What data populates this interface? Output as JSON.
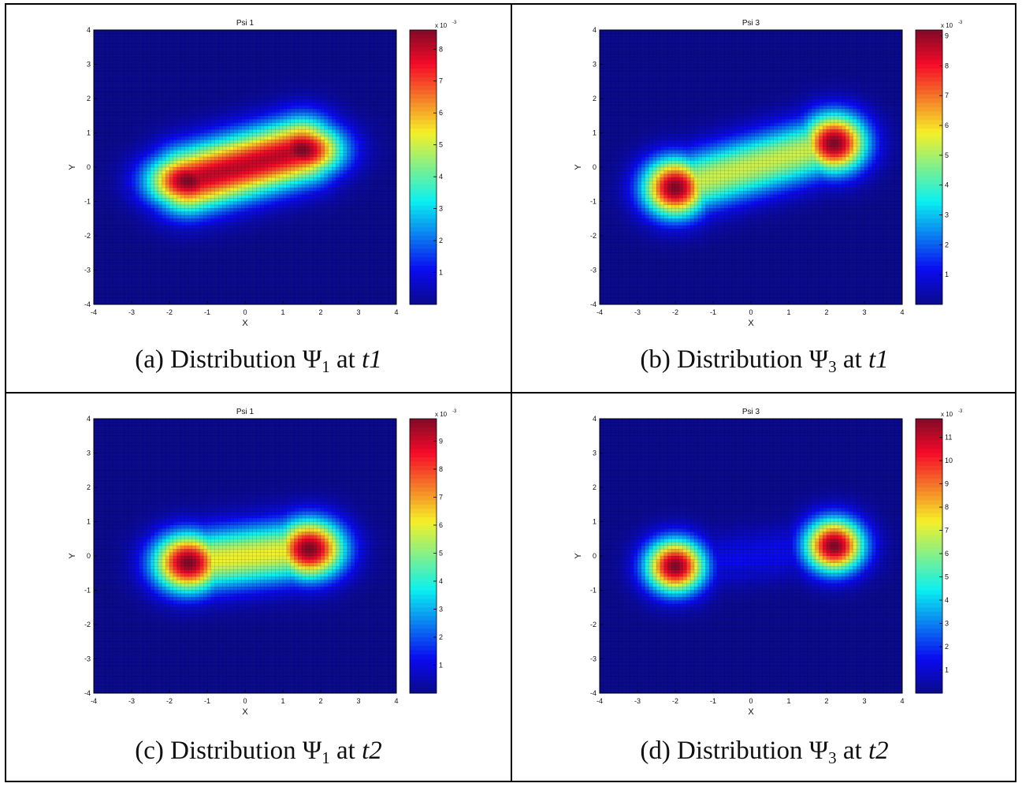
{
  "colormap": "jet",
  "colors": {
    "background_min": "#1f2c8e",
    "grid_line": "#000000",
    "peak": "#800000"
  },
  "chart_data": [
    {
      "type": "heatmap",
      "title": "Psi 1",
      "xlabel": "X",
      "ylabel": "Y",
      "xlim": [
        -4,
        4
      ],
      "ylim": [
        -4,
        4
      ],
      "x_ticks": [
        "-4",
        "-3",
        "-2",
        "-1",
        "0",
        "1",
        "2",
        "3",
        "4"
      ],
      "y_ticks": [
        "4",
        "3",
        "2",
        "1",
        "0",
        "-1",
        "-2",
        "-3",
        "-4"
      ],
      "grid": "on",
      "colorbar": {
        "exponent_label": "x 10",
        "exponent_sup": "-3",
        "ticks": [
          "8",
          "7",
          "6",
          "5",
          "4",
          "3",
          "2",
          "1"
        ],
        "range": [
          0,
          8.6
        ]
      },
      "peaks": [
        {
          "x": -1.5,
          "y": -0.4,
          "value": 8.6,
          "sx": 0.75,
          "sy": 0.55
        },
        {
          "x": 1.5,
          "y": 0.5,
          "value": 8.6,
          "sx": 0.75,
          "sy": 0.55
        }
      ],
      "ridge": 0.93,
      "caption": {
        "prefix": "(a) Distribution ",
        "sym": "Ψ",
        "sub": "1",
        "mid": " at ",
        "time": "t1"
      }
    },
    {
      "type": "heatmap",
      "title": "Psi 3",
      "xlabel": "X",
      "ylabel": "Y",
      "xlim": [
        -4,
        4
      ],
      "ylim": [
        -4,
        4
      ],
      "x_ticks": [
        "-4",
        "-3",
        "-2",
        "-1",
        "0",
        "1",
        "2",
        "3",
        "4"
      ],
      "y_ticks": [
        "4",
        "3",
        "2",
        "1",
        "0",
        "-1",
        "-2",
        "-3",
        "-4"
      ],
      "grid": "on",
      "colorbar": {
        "exponent_label": "x 10",
        "exponent_sup": "-3",
        "ticks": [
          "9",
          "8",
          "7",
          "6",
          "5",
          "4",
          "3",
          "2",
          "1"
        ],
        "range": [
          0,
          9.2
        ]
      },
      "peaks": [
        {
          "x": -2.0,
          "y": -0.6,
          "value": 9.2,
          "sx": 0.6,
          "sy": 0.6
        },
        {
          "x": 2.2,
          "y": 0.7,
          "value": 9.2,
          "sx": 0.6,
          "sy": 0.6
        }
      ],
      "ridge": 0.58,
      "caption": {
        "prefix": "(b) Distribution ",
        "sym": "Ψ",
        "sub": "3",
        "mid": " at ",
        "time": "t1"
      }
    },
    {
      "type": "heatmap",
      "title": "Psi 1",
      "xlabel": "X",
      "ylabel": "Y",
      "xlim": [
        -4,
        4
      ],
      "ylim": [
        -4,
        4
      ],
      "x_ticks": [
        "-4",
        "-3",
        "-2",
        "-1",
        "0",
        "1",
        "2",
        "3",
        "4"
      ],
      "y_ticks": [
        "4",
        "3",
        "2",
        "1",
        "0",
        "-1",
        "-2",
        "-3",
        "-4"
      ],
      "grid": "on",
      "colorbar": {
        "exponent_label": "x 10",
        "exponent_sup": "-3",
        "ticks": [
          "9",
          "8",
          "7",
          "6",
          "5",
          "4",
          "3",
          "2",
          "1"
        ],
        "range": [
          0,
          9.8
        ]
      },
      "peaks": [
        {
          "x": -1.5,
          "y": -0.2,
          "value": 9.8,
          "sx": 0.65,
          "sy": 0.6
        },
        {
          "x": 1.7,
          "y": 0.2,
          "value": 9.8,
          "sx": 0.65,
          "sy": 0.6
        }
      ],
      "ridge": 0.62,
      "caption": {
        "prefix": "(c) Distribution ",
        "sym": "Ψ",
        "sub": "1",
        "mid": " at ",
        "time": "t2"
      }
    },
    {
      "type": "heatmap",
      "title": "Psi 3",
      "xlabel": "X",
      "ylabel": "Y",
      "xlim": [
        -4,
        4
      ],
      "ylim": [
        -4,
        4
      ],
      "x_ticks": [
        "-4",
        "-3",
        "-2",
        "-1",
        "0",
        "1",
        "2",
        "3",
        "4"
      ],
      "y_ticks": [
        "4",
        "3",
        "2",
        "1",
        "0",
        "-1",
        "-2",
        "-3",
        "-4"
      ],
      "grid": "on",
      "colorbar": {
        "exponent_label": "x 10",
        "exponent_sup": "-3",
        "ticks": [
          "11",
          "10",
          "9",
          "8",
          "7",
          "6",
          "5",
          "4",
          "3",
          "2",
          "1"
        ],
        "range": [
          0,
          11.8
        ]
      },
      "peaks": [
        {
          "x": -2.0,
          "y": -0.3,
          "value": 11.8,
          "sx": 0.55,
          "sy": 0.55
        },
        {
          "x": 2.2,
          "y": 0.3,
          "value": 11.8,
          "sx": 0.55,
          "sy": 0.55
        }
      ],
      "ridge": 0.12,
      "caption": {
        "prefix": "(d) Distribution ",
        "sym": "Ψ",
        "sub": "3",
        "mid": " at ",
        "time": "t2"
      }
    }
  ]
}
